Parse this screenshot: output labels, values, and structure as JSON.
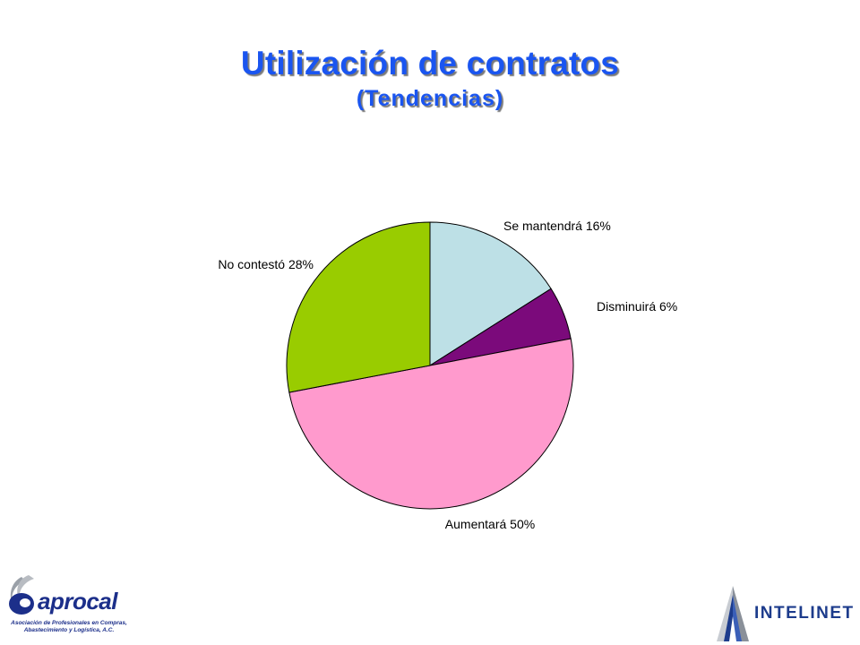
{
  "slide": {
    "title": "Utilización de contratos",
    "subtitle": "(Tendencias)"
  },
  "chart_data": {
    "type": "pie",
    "title": "Utilización de contratos",
    "subtitle": "(Tendencias)",
    "start_angle_deg": 0,
    "direction": "clockwise",
    "slices": [
      {
        "label": "Se mantendrá",
        "value": 16,
        "display": "Se mantendrá 16%",
        "color": "#bde0e6"
      },
      {
        "label": "Disminuirá",
        "value": 6,
        "display": "Disminuirá 6%",
        "color": "#7b0a7b"
      },
      {
        "label": "Aumentará",
        "value": 50,
        "display": "Aumentará 50%",
        "color": "#ff9acd"
      },
      {
        "label": "No contestó",
        "value": 28,
        "display": "No contestó 28%",
        "color": "#99cc00"
      }
    ]
  },
  "logos": {
    "aprocal": {
      "name": "aprocal",
      "tagline_line1": "Asociación de Profesionales en Compras,",
      "tagline_line2": "Abastecimiento y Logística, A.C.",
      "color": "#1c2f8a"
    },
    "intelinet": {
      "name": "INTELINET",
      "color": "#1d3c8c"
    }
  }
}
